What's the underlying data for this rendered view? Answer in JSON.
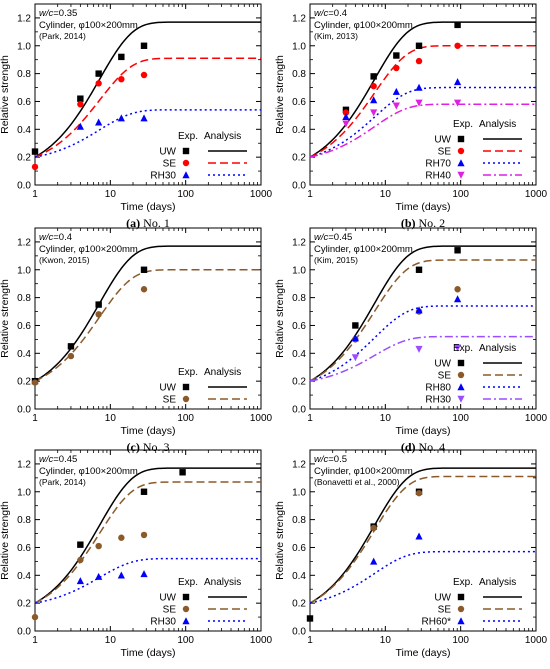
{
  "chart_data": [
    {
      "type": "scatter",
      "panel_id": "a",
      "caption_label": "(a)",
      "caption_text": "No. 1",
      "annotation": {
        "wc_label": "w/c",
        "wc_value": "=0.35",
        "specimen": "Cylinder, ",
        "specimen_dim": "φ100×200mm",
        "source": "(Park, 2014)"
      },
      "xlabel": "Time (days)",
      "ylabel": "Relative strength",
      "xscale": "log",
      "xlim": [
        1,
        1000
      ],
      "ylim": [
        0,
        1.3
      ],
      "x_ticks": [
        "1",
        "10",
        "100",
        "1000"
      ],
      "y_ticks": [
        "0.0",
        "0.2",
        "0.4",
        "0.6",
        "0.8",
        "1.0",
        "1.2"
      ],
      "legend_header": [
        "Exp.",
        "Analysis"
      ],
      "series": [
        {
          "name": "UW",
          "color": "#000000",
          "marker": "square",
          "line": "solid",
          "points": [
            [
              1,
              0.24
            ],
            [
              4,
              0.62
            ],
            [
              7,
              0.8
            ],
            [
              14,
              0.92
            ],
            [
              28,
              1.0
            ]
          ],
          "curve_plateau": 1.17
        },
        {
          "name": "SE",
          "color": "#ff0000",
          "marker": "circle",
          "line": "dashed",
          "points": [
            [
              1,
              0.13
            ],
            [
              4,
              0.58
            ],
            [
              7,
              0.73
            ],
            [
              14,
              0.76
            ],
            [
              28,
              0.79
            ]
          ],
          "curve_plateau": 0.91
        },
        {
          "name": "RH30",
          "color": "#0000ff",
          "marker": "triangle-up",
          "line": "dotted",
          "points": [
            [
              4,
              0.42
            ],
            [
              7,
              0.45
            ],
            [
              14,
              0.48
            ],
            [
              28,
              0.48
            ]
          ],
          "curve_plateau": 0.54
        }
      ]
    },
    {
      "type": "scatter",
      "panel_id": "b",
      "caption_label": "(b)",
      "caption_text": "No. 2",
      "annotation": {
        "wc_label": "w/c",
        "wc_value": "=0.4",
        "specimen": "Cylinder, ",
        "specimen_dim": "φ100×200mm",
        "source": "(Kim, 2013)"
      },
      "xlabel": "Time (days)",
      "ylabel": "Relative strength",
      "xscale": "log",
      "xlim": [
        1,
        1000
      ],
      "ylim": [
        0,
        1.3
      ],
      "x_ticks": [
        "1",
        "10",
        "100",
        "1000"
      ],
      "y_ticks": [
        "0.0",
        "0.2",
        "0.4",
        "0.6",
        "0.8",
        "1.0",
        "1.2"
      ],
      "legend_header": [
        "Exp.",
        "Analysis"
      ],
      "series": [
        {
          "name": "UW",
          "color": "#000000",
          "marker": "square",
          "line": "solid",
          "points": [
            [
              3,
              0.54
            ],
            [
              7,
              0.78
            ],
            [
              14,
              0.93
            ],
            [
              28,
              1.0
            ],
            [
              91,
              1.15
            ]
          ],
          "curve_plateau": 1.17
        },
        {
          "name": "SE",
          "color": "#ff0000",
          "marker": "circle",
          "line": "dashed",
          "points": [
            [
              3,
              0.52
            ],
            [
              7,
              0.71
            ],
            [
              14,
              0.84
            ],
            [
              28,
              0.89
            ],
            [
              91,
              1.0
            ]
          ],
          "curve_plateau": 1.0
        },
        {
          "name": "RH70",
          "color": "#0000ff",
          "marker": "triangle-up",
          "line": "dotted",
          "points": [
            [
              3,
              0.49
            ],
            [
              7,
              0.61
            ],
            [
              14,
              0.67
            ],
            [
              28,
              0.7
            ],
            [
              91,
              0.74
            ]
          ],
          "curve_plateau": 0.7
        },
        {
          "name": "RH40",
          "color": "#e020e0",
          "marker": "triangle-down",
          "line": "dashdot",
          "points": [
            [
              3,
              0.44
            ],
            [
              7,
              0.52
            ],
            [
              14,
              0.57
            ],
            [
              28,
              0.59
            ],
            [
              91,
              0.59
            ]
          ],
          "curve_plateau": 0.58
        }
      ]
    },
    {
      "type": "scatter",
      "panel_id": "c",
      "caption_label": "(c)",
      "caption_text": "No. 3",
      "annotation": {
        "wc_label": "w/c",
        "wc_value": "=0.4",
        "specimen": "Cylinder, ",
        "specimen_dim": "φ100×200mm",
        "source": "(Kwon, 2015)"
      },
      "xlabel": "Time (days)",
      "ylabel": "Relative strength",
      "xscale": "log",
      "xlim": [
        1,
        1000
      ],
      "ylim": [
        0,
        1.3
      ],
      "x_ticks": [
        "1",
        "10",
        "100",
        "1000"
      ],
      "y_ticks": [
        "0.0",
        "0.2",
        "0.4",
        "0.6",
        "0.8",
        "1.0",
        "1.2"
      ],
      "legend_header": [
        "Exp.",
        "Analysis"
      ],
      "series": [
        {
          "name": "UW",
          "color": "#000000",
          "marker": "square",
          "line": "solid",
          "points": [
            [
              1,
              0.2
            ],
            [
              3,
              0.45
            ],
            [
              7,
              0.75
            ],
            [
              28,
              1.0
            ]
          ],
          "curve_plateau": 1.17
        },
        {
          "name": "SE",
          "color": "#8b5a2b",
          "marker": "circle",
          "line": "dashed",
          "points": [
            [
              1,
              0.19
            ],
            [
              3,
              0.38
            ],
            [
              7,
              0.68
            ],
            [
              28,
              0.86
            ]
          ],
          "curve_plateau": 1.0
        }
      ]
    },
    {
      "type": "scatter",
      "panel_id": "d",
      "caption_label": "(d)",
      "caption_text": "No. 4",
      "annotation": {
        "wc_label": "w/c",
        "wc_value": "=0.45",
        "specimen": "Cylinder, ",
        "specimen_dim": "φ100×200mm",
        "source": "(Kim, 2015)"
      },
      "xlabel": "Time (days)",
      "ylabel": "Relative strength",
      "xscale": "log",
      "xlim": [
        1,
        1000
      ],
      "ylim": [
        0,
        1.3
      ],
      "x_ticks": [
        "1",
        "10",
        "100",
        "1000"
      ],
      "y_ticks": [
        "0.0",
        "0.2",
        "0.4",
        "0.6",
        "0.8",
        "1.0",
        "1.2"
      ],
      "legend_header": [
        "Exp.",
        "Analysis"
      ],
      "series": [
        {
          "name": "UW",
          "color": "#000000",
          "marker": "square",
          "line": "solid",
          "points": [
            [
              4,
              0.6
            ],
            [
              28,
              1.0
            ],
            [
              91,
              1.14
            ]
          ],
          "curve_plateau": 1.17
        },
        {
          "name": "SE",
          "color": "#8b5a2b",
          "marker": "circle",
          "line": "dashed",
          "points": [
            [
              4,
              0.5
            ],
            [
              28,
              0.7
            ],
            [
              91,
              0.86
            ]
          ],
          "curve_plateau": 1.07
        },
        {
          "name": "RH80",
          "color": "#0000ff",
          "marker": "triangle-up",
          "line": "dotted",
          "points": [
            [
              4,
              0.51
            ],
            [
              28,
              0.71
            ],
            [
              91,
              0.79
            ]
          ],
          "curve_plateau": 0.74
        },
        {
          "name": "RH30",
          "color": "#9b4dff",
          "marker": "triangle-down",
          "line": "dashdot",
          "points": [
            [
              4,
              0.37
            ],
            [
              28,
              0.43
            ],
            [
              91,
              0.44
            ]
          ],
          "curve_plateau": 0.52
        }
      ]
    },
    {
      "type": "scatter",
      "panel_id": "e",
      "caption_label": "(e)",
      "caption_text": "No. 5",
      "annotation": {
        "wc_label": "w/c",
        "wc_value": "=0.45",
        "specimen": "Cylinder, ",
        "specimen_dim": "φ100×200mm",
        "source": "(Park, 2014)"
      },
      "xlabel": "Time (days)",
      "ylabel": "Relative strength",
      "xscale": "log",
      "xlim": [
        1,
        1000
      ],
      "ylim": [
        0,
        1.3
      ],
      "x_ticks": [
        "1",
        "10",
        "100",
        "1000"
      ],
      "y_ticks": [
        "0.0",
        "0.2",
        "0.4",
        "0.6",
        "0.8",
        "1.0",
        "1.2"
      ],
      "legend_header": [
        "Exp.",
        "Analysis"
      ],
      "series": [
        {
          "name": "UW",
          "color": "#000000",
          "marker": "square",
          "line": "solid",
          "points": [
            [
              4,
              0.62
            ],
            [
              28,
              1.0
            ],
            [
              91,
              1.14
            ]
          ],
          "curve_plateau": 1.17
        },
        {
          "name": "SE",
          "color": "#8b5a2b",
          "marker": "circle",
          "line": "dashed",
          "points": [
            [
              1,
              0.1
            ],
            [
              4,
              0.51
            ],
            [
              7,
              0.61
            ],
            [
              14,
              0.67
            ],
            [
              28,
              0.69
            ]
          ],
          "curve_plateau": 1.07
        },
        {
          "name": "RH30",
          "color": "#0000ff",
          "marker": "triangle-up",
          "line": "dotted",
          "points": [
            [
              4,
              0.36
            ],
            [
              7,
              0.39
            ],
            [
              14,
              0.4
            ],
            [
              28,
              0.41
            ]
          ],
          "curve_plateau": 0.52
        }
      ]
    },
    {
      "type": "scatter",
      "panel_id": "f",
      "caption_label": "(f)",
      "caption_text": "No. 6",
      "annotation": {
        "wc_label": "w/c",
        "wc_value": "=0.5",
        "specimen": "Cylinder, ",
        "specimen_dim": "φ100×200mm",
        "source": "(Bonavetti et al., 2000)"
      },
      "xlabel": "Time (days)",
      "ylabel": "Relative strength",
      "xscale": "log",
      "xlim": [
        1,
        1000
      ],
      "ylim": [
        0,
        1.3
      ],
      "x_ticks": [
        "1",
        "10",
        "100",
        "1000"
      ],
      "y_ticks": [
        "0.0",
        "0.2",
        "0.4",
        "0.6",
        "0.8",
        "1.0",
        "1.2"
      ],
      "legend_header": [
        "Exp.",
        "Analysis"
      ],
      "series": [
        {
          "name": "UW",
          "color": "#000000",
          "marker": "square",
          "line": "solid",
          "points": [
            [
              1,
              0.09
            ],
            [
              7,
              0.75
            ],
            [
              28,
              1.0
            ]
          ],
          "curve_plateau": 1.17
        },
        {
          "name": "SE",
          "color": "#8b5a2b",
          "marker": "circle",
          "line": "dashed",
          "points": [
            [
              7,
              0.74
            ],
            [
              28,
              0.99
            ]
          ],
          "curve_plateau": 1.11
        },
        {
          "name": "RH60*",
          "color": "#0000ff",
          "marker": "triangle-up",
          "line": "dotted",
          "points": [
            [
              7,
              0.5
            ],
            [
              28,
              0.68
            ]
          ],
          "curve_plateau": 0.57
        }
      ]
    }
  ]
}
